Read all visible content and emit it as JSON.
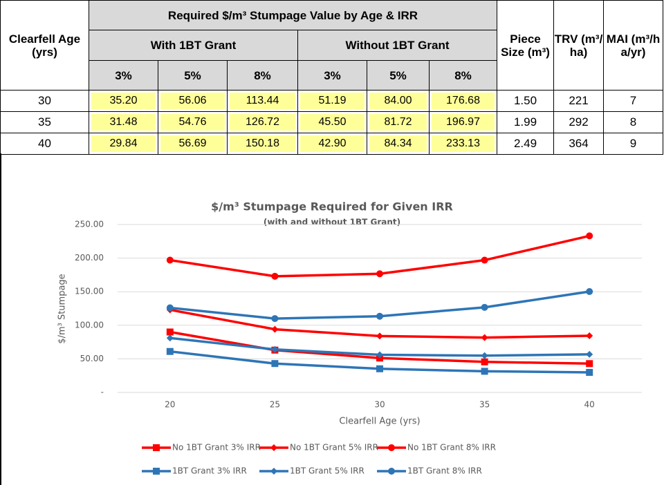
{
  "table": {
    "title": "Required $/m³ Stumpage Value by Age & IRR",
    "age_header": "Clearfell Age (yrs)",
    "group_with": "With 1BT Grant",
    "group_without": "Without 1BT Grant",
    "rates": [
      "3%",
      "5%",
      "8%",
      "3%",
      "5%",
      "8%"
    ],
    "piece_header": "Piece Size (m³)",
    "trv_header": "TRV (m³/ ha)",
    "mai_header": "MAI (m³/h a/yr)",
    "rows": [
      [
        "30",
        "35.20",
        "56.06",
        "113.44",
        "51.19",
        "84.00",
        "176.68",
        "1.50",
        "221",
        "7"
      ],
      [
        "35",
        "31.48",
        "54.76",
        "126.72",
        "45.50",
        "81.72",
        "196.97",
        "1.99",
        "292",
        "8"
      ],
      [
        "40",
        "29.84",
        "56.69",
        "150.18",
        "42.90",
        "84.34",
        "233.13",
        "2.49",
        "364",
        "9"
      ]
    ]
  },
  "chart_data": {
    "type": "line",
    "title": "$/m³ Stumpage Required for Given IRR",
    "subtitle": "(with and without 1BT Grant)",
    "x_label": "Clearfell Age (yrs)",
    "y_label": "$/m³ Stumpage",
    "categories": [
      "20",
      "25",
      "30",
      "35",
      "40"
    ],
    "ylim": [
      0,
      250
    ],
    "yticks": [
      {
        "value": 0,
        "label": "-"
      },
      {
        "value": 50,
        "label": "50.00"
      },
      {
        "value": 100,
        "label": "100.00"
      },
      {
        "value": 150,
        "label": "150.00"
      },
      {
        "value": 200,
        "label": "200.00"
      },
      {
        "value": 250,
        "label": "250.00"
      }
    ],
    "grid": true,
    "series": [
      {
        "name": "No 1BT Grant 3% IRR",
        "color": "#ff0000",
        "marker": "square",
        "values": [
          90,
          63,
          51.19,
          45.5,
          42.9
        ]
      },
      {
        "name": "No 1BT Grant 5% IRR",
        "color": "#ff0000",
        "marker": "diamond",
        "values": [
          123,
          94,
          84,
          81.72,
          84.34
        ]
      },
      {
        "name": "No 1BT Grant 8% IRR",
        "color": "#ff0000",
        "marker": "circle",
        "values": [
          197,
          173,
          176.68,
          196.97,
          233.13
        ]
      },
      {
        "name": "1BT Grant 3% IRR",
        "color": "#2e75b6",
        "marker": "square",
        "values": [
          61,
          43,
          35.2,
          31.48,
          29.84
        ]
      },
      {
        "name": "1BT Grant 5% IRR",
        "color": "#2e75b6",
        "marker": "diamond",
        "values": [
          81,
          64,
          56.06,
          54.76,
          56.69
        ]
      },
      {
        "name": "1BT Grant 8% IRR",
        "color": "#2e75b6",
        "marker": "circle",
        "values": [
          126,
          110,
          113.44,
          126.72,
          150.18
        ]
      }
    ]
  }
}
